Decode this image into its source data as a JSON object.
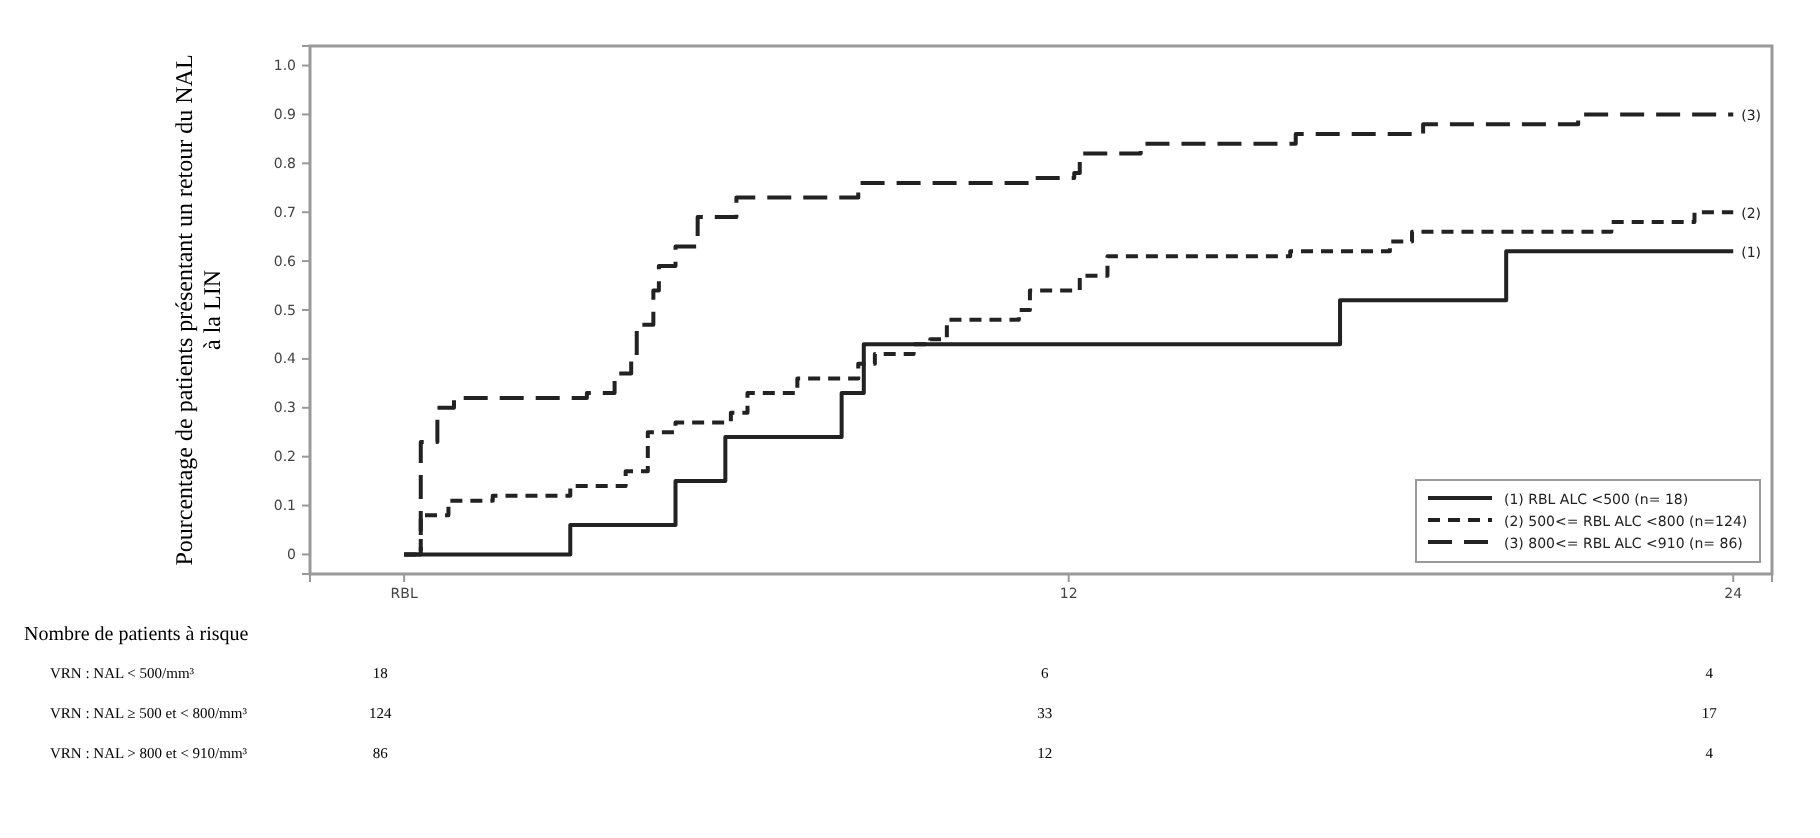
{
  "chart_data": {
    "type": "step",
    "ylabel": "Pourcentage de patients présentant un retour du NAL à la LIN",
    "xlim": [
      -1.7,
      24.7
    ],
    "ylim": [
      -0.04,
      1.04
    ],
    "xticks": [
      {
        "value": 0,
        "label": "RBL"
      },
      12,
      24
    ],
    "yticks": [
      0,
      0.1,
      0.2,
      0.3,
      0.4,
      0.5,
      0.6,
      0.7,
      0.8,
      0.9,
      {
        "value": 1,
        "label": "1.0"
      }
    ],
    "grid": false,
    "legend": "bottom right",
    "marker": "none",
    "series": [
      {
        "name": "(1) RBL ALC <500 (n= 18)",
        "color": "#222222",
        "line_style": "solid",
        "x": [
          0,
          3.0,
          4.9,
          5.8,
          7.9,
          8.3,
          16.9,
          19.9,
          24
        ],
        "values": [
          0,
          0.06,
          0.15,
          0.24,
          0.33,
          0.43,
          0.52,
          0.62,
          0.62
        ]
      },
      {
        "name": "(2) 500<= RBL ALC <800 (n=124)",
        "color": "#222222",
        "line_style": "dashed",
        "x": [
          0,
          0.3,
          0.8,
          1.6,
          3.0,
          4.0,
          4.4,
          4.9,
          5.9,
          6.2,
          7.1,
          8.2,
          8.5,
          9.2,
          9.5,
          9.8,
          11.1,
          11.3,
          12.2,
          12.7,
          16.0,
          17.8,
          18.2,
          21.8,
          23.3,
          24
        ],
        "values": [
          0,
          0.08,
          0.11,
          0.12,
          0.14,
          0.17,
          0.25,
          0.27,
          0.29,
          0.33,
          0.36,
          0.39,
          0.41,
          0.43,
          0.44,
          0.48,
          0.5,
          0.54,
          0.57,
          0.61,
          0.62,
          0.64,
          0.66,
          0.68,
          0.7,
          0.7
        ]
      },
      {
        "name": "(3) 800<= RBL ALC <910 (n= 86)",
        "color": "#222222",
        "line_style": "dashed",
        "x": [
          0,
          0.3,
          0.6,
          0.9,
          3.3,
          3.8,
          4.1,
          4.2,
          4.5,
          4.6,
          4.9,
          5.3,
          6.0,
          8.2,
          11.3,
          12.1,
          12.2,
          13.3,
          16.1,
          18.4,
          21.2,
          24
        ],
        "values": [
          0,
          0.23,
          0.3,
          0.32,
          0.33,
          0.37,
          0.4,
          0.47,
          0.54,
          0.59,
          0.63,
          0.69,
          0.73,
          0.76,
          0.77,
          0.78,
          0.82,
          0.84,
          0.86,
          0.88,
          0.9,
          0.9
        ]
      }
    ],
    "annotations": [
      "(1)",
      "(2)",
      "(3)",
      "Nombre de patients à risque",
      "VRN : NAL < 500/mm³",
      "18",
      "6",
      "4",
      "VRN : NAL ≥ 500 et < 800/mm³",
      "124",
      "33",
      "17",
      "VRN : NAL > 800 et < 910/mm³",
      "86",
      "12",
      "4"
    ]
  }
}
